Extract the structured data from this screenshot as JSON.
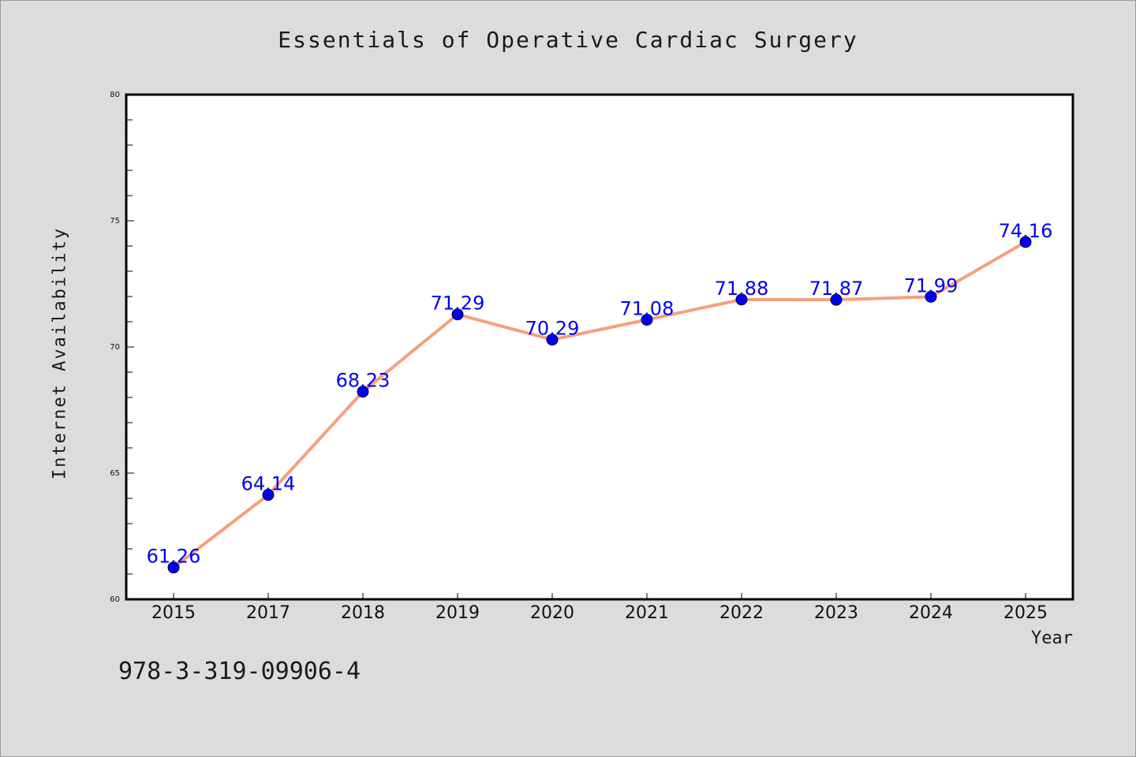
{
  "chart_data": {
    "type": "line",
    "title": "Essentials of Operative Cardiac Surgery",
    "xlabel": "Year",
    "ylabel": "Internet Availability",
    "categories": [
      "2015",
      "2017",
      "2018",
      "2019",
      "2020",
      "2021",
      "2022",
      "2023",
      "2024",
      "2025"
    ],
    "series": [
      {
        "values": [
          61.26,
          64.14,
          68.23,
          71.29,
          70.29,
          71.08,
          71.88,
          71.87,
          71.99,
          74.16
        ],
        "labels": [
          "61.26",
          "64.14",
          "68.23",
          "71.29",
          "70.29",
          "71.08",
          "71.88",
          "71.87",
          "71.99",
          "74.16"
        ]
      }
    ],
    "ylim": [
      60,
      80
    ],
    "yticks": [
      "60",
      "65",
      "70",
      "75",
      "80"
    ],
    "grid": false,
    "legend": "none",
    "colors": {
      "line": "#f4a07e",
      "marker": "#0000ee",
      "label": "#0000ee",
      "background": "#dcdcdc",
      "plot_background": "#ffffff"
    }
  },
  "footer": {
    "code": "978-3-319-09906-4"
  }
}
